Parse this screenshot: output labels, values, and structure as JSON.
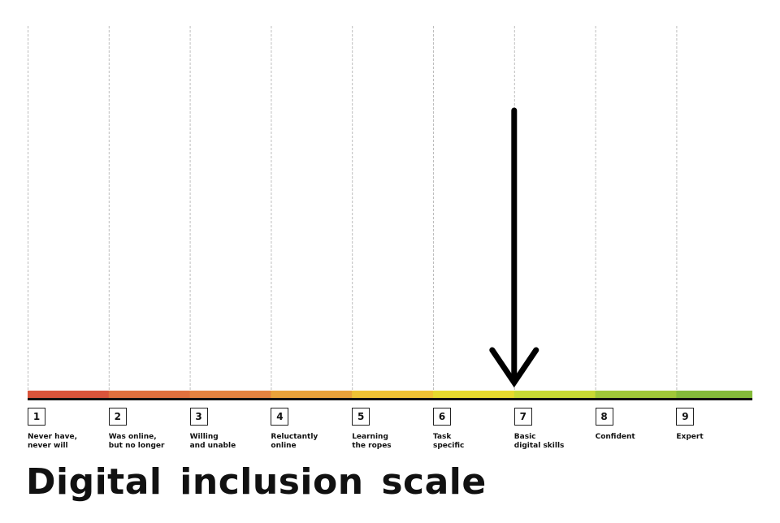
{
  "title": "Digital inclusion scale",
  "indicator": {
    "stage": 7,
    "icon": "down-arrow-icon"
  },
  "stages": [
    {
      "number": "1",
      "label": "Never have,\nnever will",
      "color": "#d9543b"
    },
    {
      "number": "2",
      "label": "Was online,\nbut no longer",
      "color": "#e0703e"
    },
    {
      "number": "3",
      "label": "Willing\nand unable",
      "color": "#e58340"
    },
    {
      "number": "4",
      "label": "Reluctantly\nonline",
      "color": "#e9a23a"
    },
    {
      "number": "5",
      "label": "Learning\nthe ropes",
      "color": "#efc234"
    },
    {
      "number": "6",
      "label": "Task\nspecific",
      "color": "#e6d92e"
    },
    {
      "number": "7",
      "label": "Basic\ndigital skills",
      "color": "#c8d934"
    },
    {
      "number": "8",
      "label": "Confident",
      "color": "#a0c839"
    },
    {
      "number": "9",
      "label": "Expert",
      "color": "#84bb3a"
    }
  ]
}
